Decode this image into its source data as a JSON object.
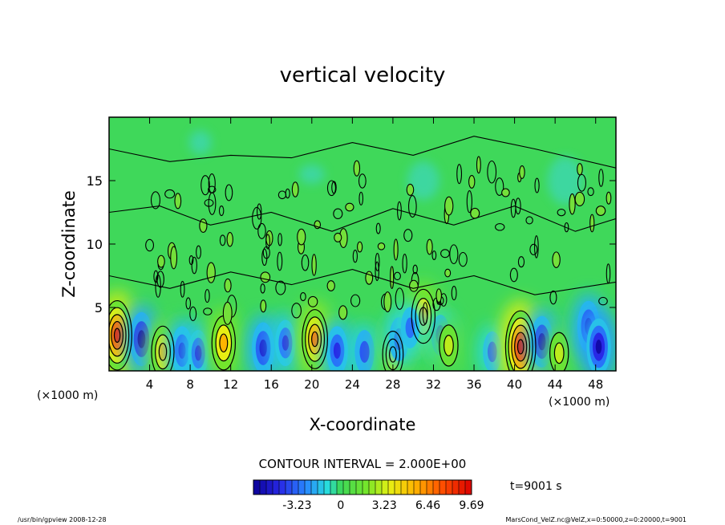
{
  "chart_data": {
    "type": "heatmap",
    "title": "vertical velocity",
    "xlabel": "X-coordinate",
    "ylabel": "Z-coordinate",
    "x_unit_label": "(×1000 m)",
    "x_unit_label_right": "(×1000 m)",
    "xlim": [
      0,
      50
    ],
    "ylim": [
      0,
      20
    ],
    "x_ticks": [
      4,
      8,
      12,
      16,
      20,
      24,
      28,
      32,
      36,
      40,
      44,
      48
    ],
    "y_ticks": [
      5,
      10,
      15
    ],
    "contour_interval_text": "CONTOUR INTERVAL = 2.000E+00",
    "time_text": "t=9001 s",
    "colorbar": {
      "min": -6.46,
      "max": 9.69,
      "tick_labels": [
        "-3.23",
        "0",
        "3.23",
        "6.46",
        "9.69"
      ],
      "tick_values": [
        -3.23,
        0,
        3.23,
        6.46,
        9.69
      ]
    },
    "features": [
      {
        "kind": "updraft",
        "x": 0.8,
        "z": 2.8,
        "value": 8.5
      },
      {
        "kind": "downdraft",
        "x": 3.2,
        "z": 2.5,
        "value": -5.5
      },
      {
        "kind": "updraft",
        "x": 5.3,
        "z": 1.5,
        "value": 5.0
      },
      {
        "kind": "downdraft",
        "x": 7.2,
        "z": 1.6,
        "value": -4.5
      },
      {
        "kind": "downdraft",
        "x": 8.8,
        "z": 1.4,
        "value": -4.0
      },
      {
        "kind": "updraft",
        "x": 11.3,
        "z": 2.2,
        "value": 5.5
      },
      {
        "kind": "downdraft",
        "x": 15.2,
        "z": 1.8,
        "value": -5.0
      },
      {
        "kind": "downdraft",
        "x": 17.4,
        "z": 2.2,
        "value": -4.0
      },
      {
        "kind": "updraft",
        "x": 20.3,
        "z": 2.5,
        "value": 6.5
      },
      {
        "kind": "downdraft",
        "x": 22.5,
        "z": 1.6,
        "value": -4.5
      },
      {
        "kind": "downdraft",
        "x": 25.2,
        "z": 1.5,
        "value": -3.5
      },
      {
        "kind": "updraft",
        "x": 28.0,
        "z": 1.3,
        "value": 4.0
      },
      {
        "kind": "downdraft",
        "x": 28.6,
        "z": 2.5,
        "value": -3.5
      },
      {
        "kind": "updraft",
        "x": 31.0,
        "z": 4.3,
        "value": 5.5
      },
      {
        "kind": "downdraft",
        "x": 29.7,
        "z": 3.4,
        "value": -3.0
      },
      {
        "kind": "downdraft",
        "x": 32.7,
        "z": 2.8,
        "value": -3.0
      },
      {
        "kind": "updraft",
        "x": 33.5,
        "z": 2.0,
        "value": 3.0
      },
      {
        "kind": "downdraft",
        "x": 37.8,
        "z": 1.5,
        "value": -3.0
      },
      {
        "kind": "updraft",
        "x": 40.6,
        "z": 1.9,
        "value": 9.0
      },
      {
        "kind": "downdraft",
        "x": 42.7,
        "z": 2.3,
        "value": -5.0
      },
      {
        "kind": "updraft",
        "x": 44.4,
        "z": 1.4,
        "value": 3.0
      },
      {
        "kind": "downdraft",
        "x": 47.3,
        "z": 3.5,
        "value": -5.0
      },
      {
        "kind": "downdraft",
        "x": 48.3,
        "z": 1.9,
        "value": -6.0
      }
    ]
  },
  "footer": {
    "left": "/usr/bin/gpview   2008-12-28",
    "right": "MarsCond_VelZ.nc@VelZ,x=0:50000,z=0:20000,t=9001"
  }
}
